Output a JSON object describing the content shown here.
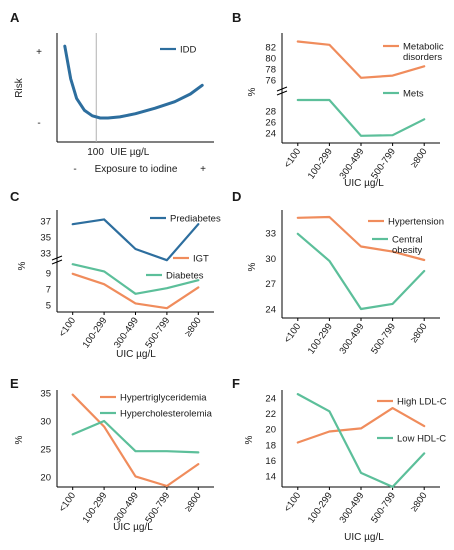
{
  "figure": {
    "colors": {
      "blue": "#2d6e9e",
      "orange": "#f08c5c",
      "green": "#5cbf9a",
      "axis": "#000000",
      "guide": "#b0b0b0"
    }
  },
  "chart_data": [
    {
      "panel": "A",
      "type": "line",
      "yticks": [
        "+",
        "-"
      ],
      "ylabel": "Risk",
      "xlabel": "Exposure to iodine",
      "xlabel_minus": "-",
      "xlabel_plus": "+",
      "marker": {
        "x": 100,
        "label": "UIE µg/L"
      },
      "xlim": [
        0,
        400
      ],
      "ylim": [
        0,
        1
      ],
      "series": [
        {
          "name": "IDD",
          "color": "blue",
          "x": [
            20,
            35,
            50,
            70,
            90,
            110,
            130,
            160,
            200,
            250,
            300,
            340,
            370
          ],
          "y": [
            0.88,
            0.58,
            0.4,
            0.29,
            0.24,
            0.22,
            0.22,
            0.23,
            0.26,
            0.31,
            0.37,
            0.44,
            0.52
          ]
        }
      ]
    },
    {
      "panel": "B",
      "type": "line",
      "categories": [
        "<100",
        "100-299",
        "300-499",
        "500-799",
        ">800"
      ],
      "ylabel": "%",
      "xlabel": "UIC  µg/L",
      "axis_break": true,
      "upper_ticks": [
        76,
        78,
        80,
        82
      ],
      "lower_ticks": [
        24,
        26,
        28
      ],
      "series": [
        {
          "name": "Metabolic disorders",
          "color": "orange",
          "values": [
            83.0,
            82.4,
            76.4,
            76.8,
            78.5
          ]
        },
        {
          "name": "Mets",
          "color": "green",
          "values": [
            30.0,
            30.0,
            23.5,
            23.6,
            26.5
          ]
        }
      ]
    },
    {
      "panel": "C",
      "type": "line",
      "categories": [
        "<100",
        "100-299",
        "300-499",
        "500-799",
        ">800"
      ],
      "ylabel": "%",
      "xlabel": "UIC  µg/L",
      "axis_break": true,
      "upper_ticks": [
        33,
        35,
        37
      ],
      "lower_ticks": [
        5,
        7,
        9
      ],
      "series": [
        {
          "name": "Prediabetes",
          "color": "blue",
          "values": [
            36.6,
            37.2,
            33.5,
            32.1,
            36.6
          ]
        },
        {
          "name": "IGT",
          "color": "orange",
          "values": [
            8.9,
            7.6,
            5.2,
            4.6,
            7.2
          ]
        },
        {
          "name": "Diabetes",
          "color": "green",
          "values": [
            10.1,
            9.2,
            6.4,
            7.1,
            8.1
          ]
        }
      ]
    },
    {
      "panel": "D",
      "type": "line",
      "categories": [
        "<100",
        "100-299",
        "300-499",
        "500-799",
        ">800"
      ],
      "ylabel": "%",
      "xlabel": "UIC  µg/L",
      "ylim": [
        23.5,
        35.5
      ],
      "yticks": [
        24,
        27,
        30,
        33
      ],
      "series": [
        {
          "name": "Hypertension",
          "color": "orange",
          "values": [
            34.8,
            34.9,
            31.4,
            30.8,
            29.8
          ]
        },
        {
          "name": "Central obesity",
          "color": "green",
          "values": [
            32.9,
            29.7,
            24.0,
            24.6,
            28.5
          ]
        }
      ]
    },
    {
      "panel": "E",
      "type": "line",
      "categories": [
        "<100",
        "100-299",
        "300-499",
        "500-799",
        ">800"
      ],
      "ylabel": "%",
      "xlabel": "UIC  µg/L",
      "ylim": [
        17,
        36
      ],
      "yticks": [
        20,
        25,
        30,
        35
      ],
      "series": [
        {
          "name": "Hypertriglyceridemia",
          "color": "orange",
          "values": [
            34.7,
            29.0,
            20.1,
            18.4,
            22.3
          ]
        },
        {
          "name": "Hypercholesterolemia",
          "color": "green",
          "values": [
            27.6,
            30.0,
            24.6,
            24.6,
            24.4
          ]
        }
      ]
    },
    {
      "panel": "F",
      "type": "line",
      "categories": [
        "<100",
        "100-299",
        "300-499",
        "500-799",
        ">800"
      ],
      "ylabel": "%",
      "xlabel": "UIC  µg/L",
      "ylim": [
        12,
        25
      ],
      "yticks": [
        14,
        16,
        18,
        20,
        22,
        24
      ],
      "series": [
        {
          "name": "High LDL-C",
          "color": "orange",
          "values": [
            18.3,
            19.7,
            20.1,
            22.7,
            20.4
          ]
        },
        {
          "name": "Low HDL-C",
          "color": "green",
          "values": [
            24.5,
            22.3,
            14.4,
            12.6,
            16.9
          ]
        }
      ]
    }
  ]
}
